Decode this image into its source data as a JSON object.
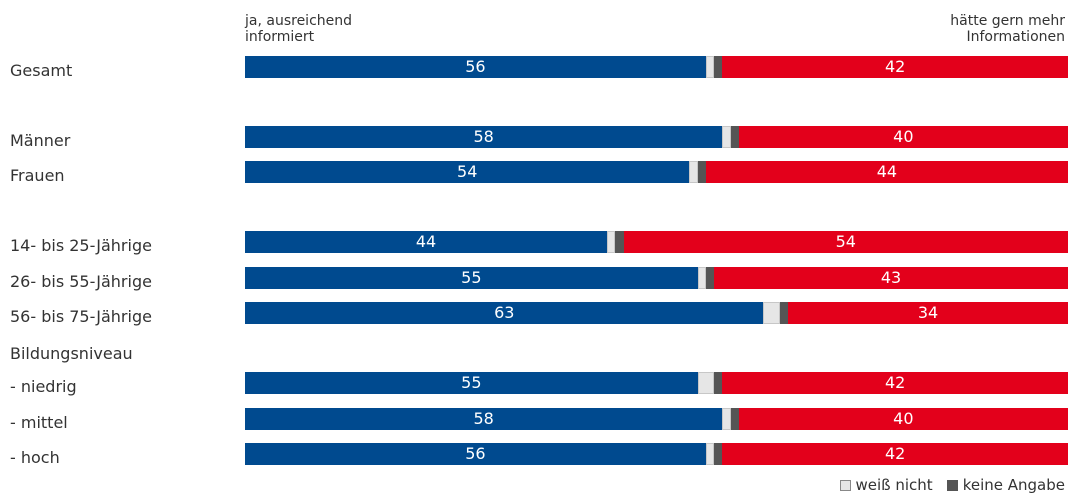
{
  "chart_data": {
    "type": "bar",
    "stacked": true,
    "orientation": "horizontal",
    "left_header": "ja, ausreichend\ninformiert",
    "right_header": "hätte gern mehr\nInformationen",
    "series": [
      {
        "name": "ja, ausreichend informiert",
        "color": "#004a8f"
      },
      {
        "name": "weiß nicht",
        "color": "#e6e6e6"
      },
      {
        "name": "keine Angabe",
        "color": "#555555"
      },
      {
        "name": "hätte gern mehr Informationen",
        "color": "#e3001b"
      }
    ],
    "groups": [
      {
        "label": "Gesamt",
        "bars": [
          {
            "label": "Gesamt",
            "yes": 56,
            "unsure": 1,
            "na": 1,
            "no": 42
          }
        ]
      },
      {
        "label": "",
        "bars": [
          {
            "label": "Männer",
            "yes": 58,
            "unsure": 1,
            "na": 1,
            "no": 40
          },
          {
            "label": "Frauen",
            "yes": 54,
            "unsure": 1,
            "na": 1,
            "no": 44
          }
        ]
      },
      {
        "label": "",
        "bars": [
          {
            "label": "14- bis 25-Jährige",
            "yes": 44,
            "unsure": 1,
            "na": 1,
            "no": 54
          },
          {
            "label": "26- bis 55-Jährige",
            "yes": 55,
            "unsure": 1,
            "na": 1,
            "no": 43
          },
          {
            "label": "56- bis 75-Jährige",
            "yes": 63,
            "unsure": 2,
            "na": 1,
            "no": 34
          }
        ]
      },
      {
        "label": "Bildungsniveau",
        "bars": [
          {
            "label": "- niedrig",
            "yes": 55,
            "unsure": 2,
            "na": 1,
            "no": 42
          },
          {
            "label": "- mittel",
            "yes": 58,
            "unsure": 1,
            "na": 1,
            "no": 40
          },
          {
            "label": "- hoch",
            "yes": 56,
            "unsure": 1,
            "na": 1,
            "no": 42
          }
        ]
      }
    ],
    "xlim": [
      0,
      100
    ],
    "legend": {
      "position": "bottom-right",
      "items": [
        "weiß nicht",
        "keine Angabe"
      ]
    }
  }
}
